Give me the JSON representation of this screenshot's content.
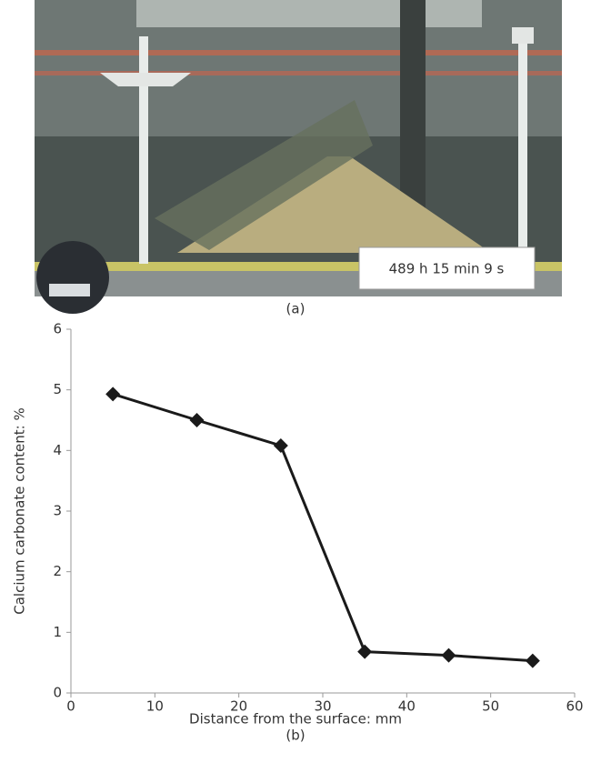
{
  "photo": {
    "timestamp": "489 h 15 min 9 s",
    "caption": "(a)"
  },
  "chart_data": {
    "type": "line",
    "caption": "(b)",
    "x_label": "Distance from the surface: mm",
    "y_label": "Calcium carbonate content: %",
    "x": [
      5,
      15,
      25,
      35,
      45,
      55
    ],
    "series": [
      {
        "color": "#1a1a1a",
        "values": [
          4.93,
          4.5,
          4.08,
          0.68,
          0.62,
          0.53
        ]
      }
    ],
    "xlim": [
      0,
      60
    ],
    "xticks": [
      0,
      10,
      20,
      30,
      40,
      50,
      60
    ],
    "ylim": [
      0,
      6
    ],
    "yticks": [
      0,
      1,
      2,
      3,
      4,
      5,
      6
    ],
    "grid": false
  }
}
